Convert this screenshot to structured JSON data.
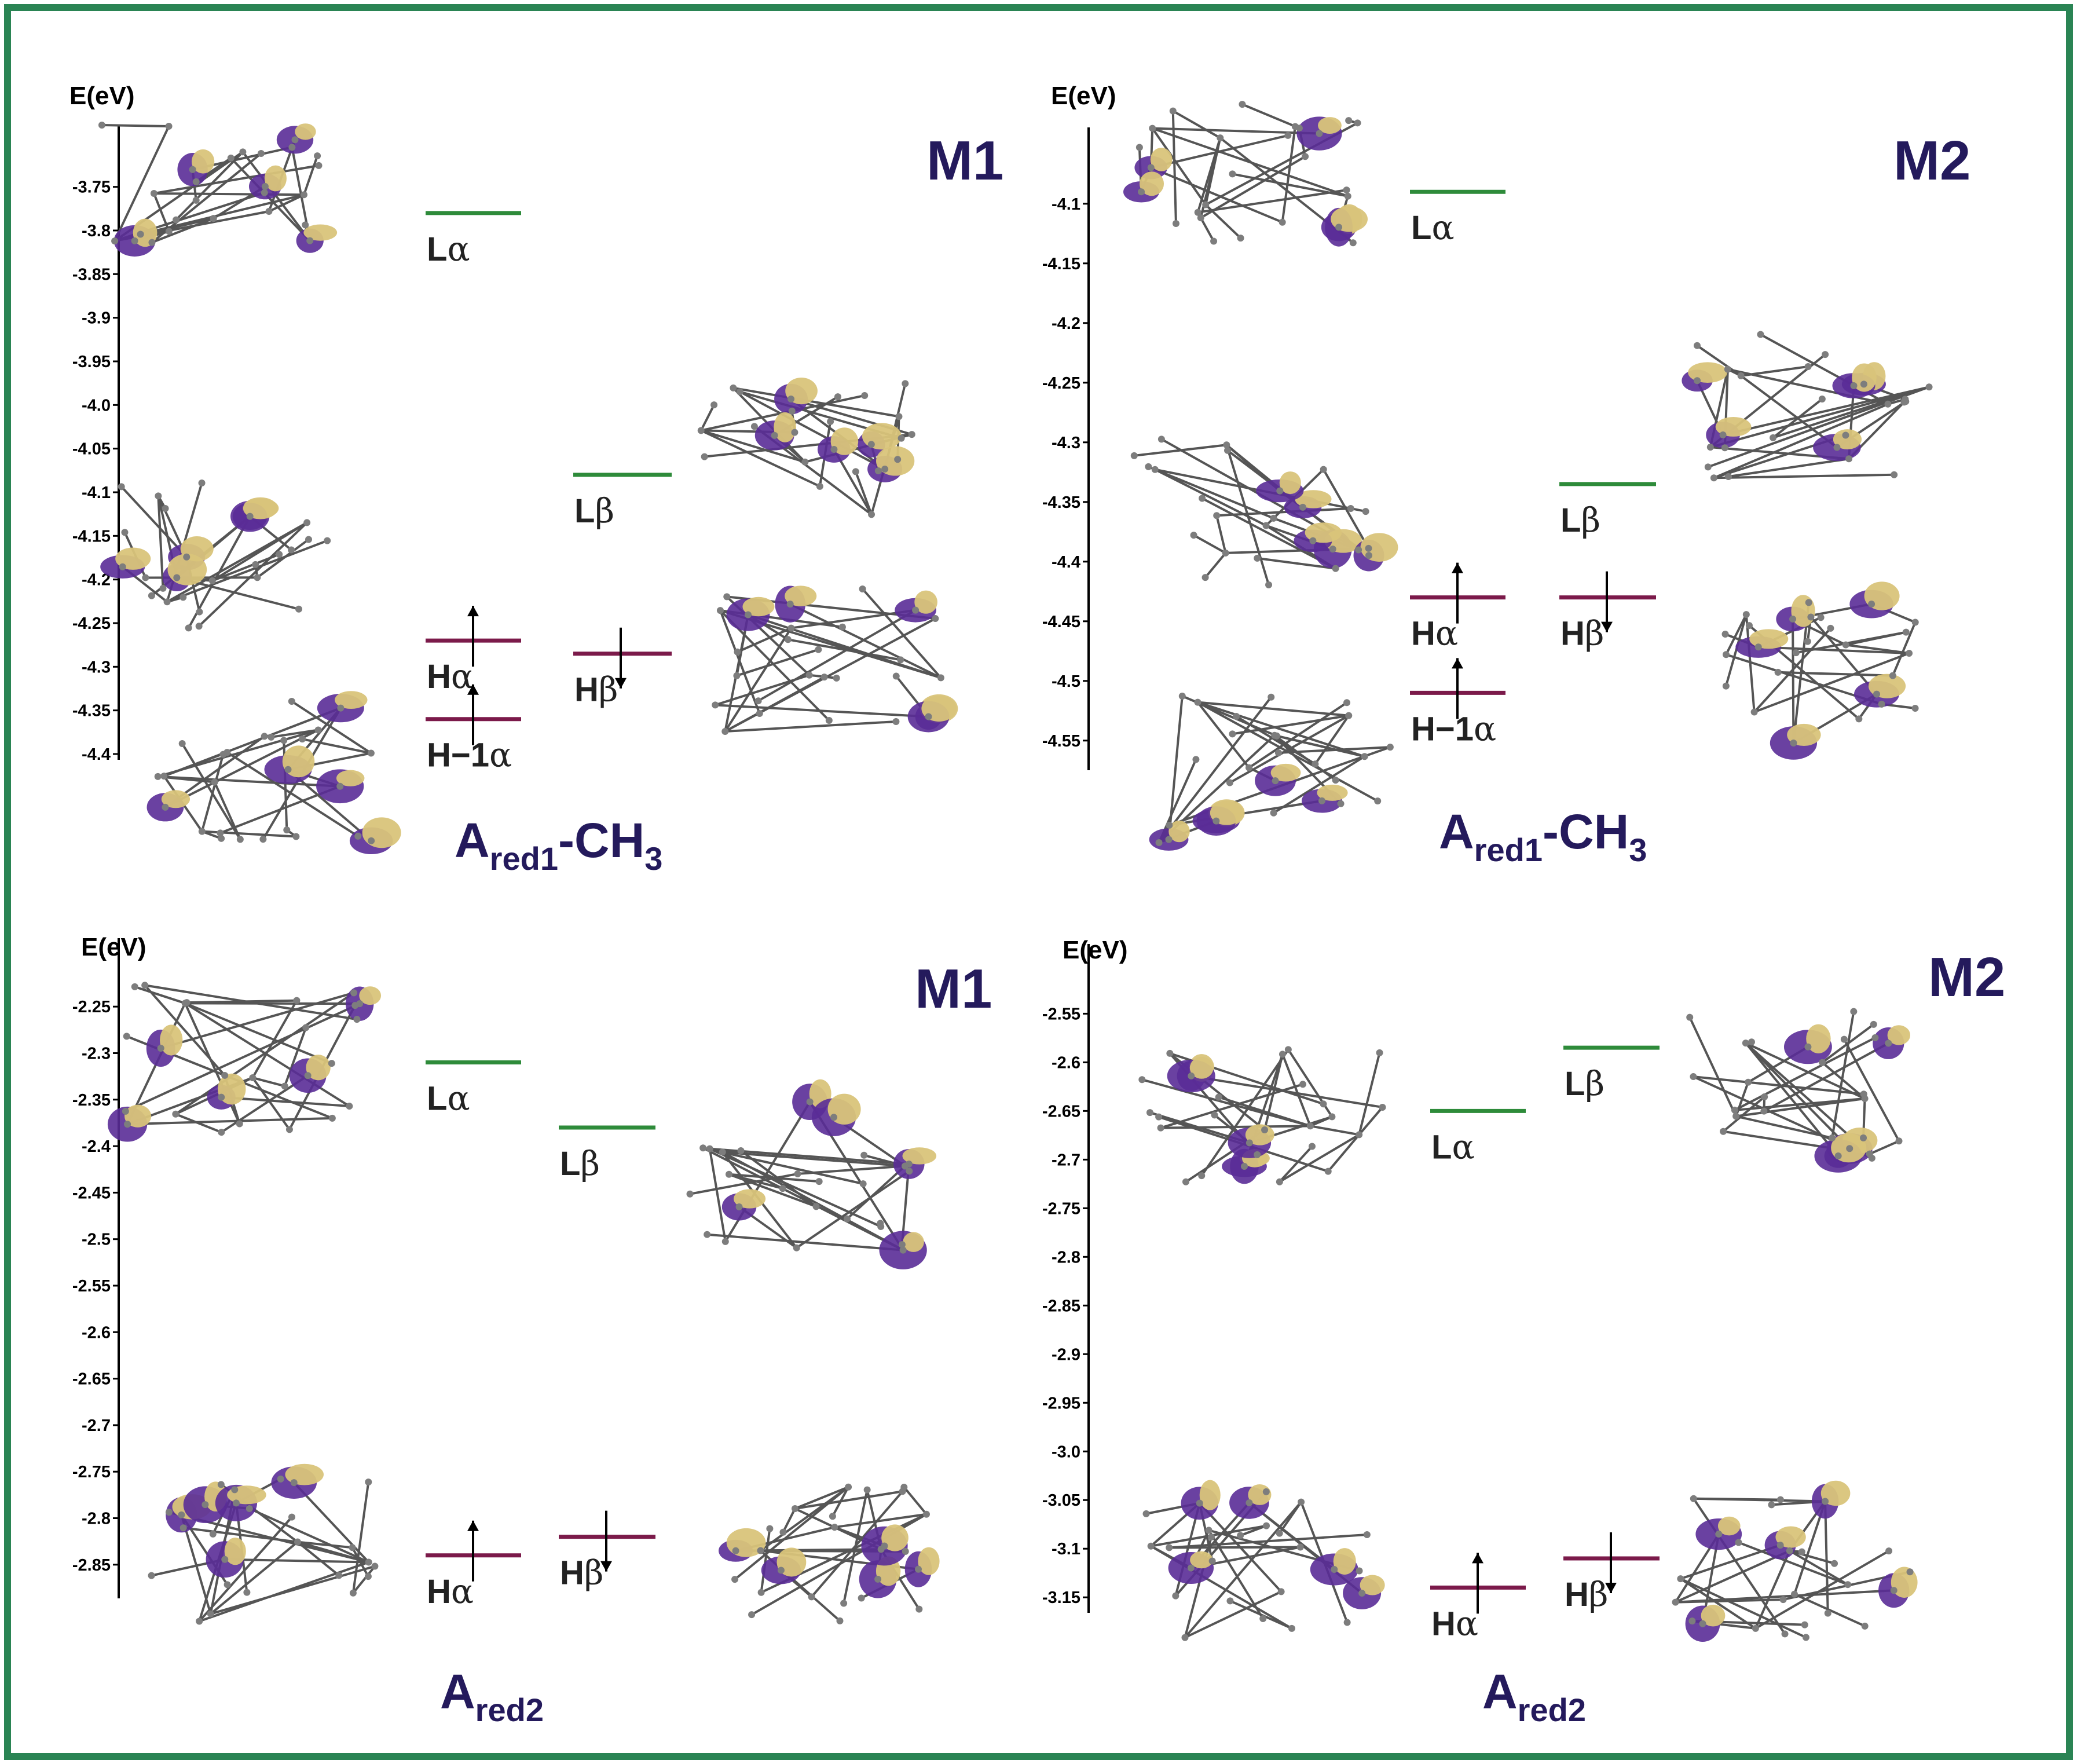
{
  "colors": {
    "frame": "#2a8454",
    "lumo": "#2e8b3a",
    "homo": "#7b1a4a",
    "title": "#241a5c",
    "orbital_purple": "#5a2c97",
    "orbital_gold": "#d9c47a",
    "atom_gray": "#7d7d7d",
    "bond": "#555555"
  },
  "chart_data": [
    {
      "type": "energy_level_diagram",
      "panel": "top-left",
      "model": "M1",
      "state": {
        "main": "A",
        "sub": "red1",
        "suffix": "-CH",
        "sub2": "3"
      },
      "ylabel": "E(eV)",
      "ylim": [
        -4.4,
        -3.725
      ],
      "ticks": [
        "-3.75",
        "-3.8",
        "-3.85",
        "-3.9",
        "-3.95",
        "-4.0",
        "-4.05",
        "-4.1",
        "-4.15",
        "-4.2",
        "-4.25",
        "-4.3",
        "-4.35",
        "-4.4"
      ],
      "levels": [
        {
          "label": "L",
          "greek": "α",
          "energy": -3.78,
          "kind": "LUMO",
          "column": 1,
          "spin": "none"
        },
        {
          "label": "L",
          "greek": "β",
          "energy": -4.08,
          "kind": "LUMO",
          "column": 2,
          "spin": "none"
        },
        {
          "label": "H",
          "greek": "α",
          "energy": -4.27,
          "kind": "HOMO",
          "column": 1,
          "spin": "up"
        },
        {
          "label": "H",
          "greek": "β",
          "energy": -4.285,
          "kind": "HOMO",
          "column": 2,
          "spin": "down"
        },
        {
          "label": "H−1",
          "greek": "α",
          "energy": -4.36,
          "kind": "HOMO",
          "column": 1,
          "spin": "up"
        }
      ]
    },
    {
      "type": "energy_level_diagram",
      "panel": "top-right",
      "model": "M2",
      "state": {
        "main": "A",
        "sub": "red1",
        "suffix": "-CH",
        "sub2": "3"
      },
      "ylabel": "E(eV)",
      "ylim": [
        -4.57,
        -4.07
      ],
      "ticks": [
        "-4.1",
        "-4.15",
        "-4.2",
        "-4.25",
        "-4.3",
        "-4.35",
        "-4.4",
        "-4.45",
        "-4.5",
        "-4.55"
      ],
      "levels": [
        {
          "label": "L",
          "greek": "α",
          "energy": -4.09,
          "kind": "LUMO",
          "column": 1,
          "spin": "none"
        },
        {
          "label": "L",
          "greek": "β",
          "energy": -4.335,
          "kind": "LUMO",
          "column": 2,
          "spin": "none"
        },
        {
          "label": "H",
          "greek": "α",
          "energy": -4.43,
          "kind": "HOMO",
          "column": 1,
          "spin": "up"
        },
        {
          "label": "H",
          "greek": "β",
          "energy": -4.43,
          "kind": "HOMO",
          "column": 2,
          "spin": "down"
        },
        {
          "label": "H−1",
          "greek": "α",
          "energy": -4.51,
          "kind": "HOMO",
          "column": 1,
          "spin": "up"
        }
      ]
    },
    {
      "type": "energy_level_diagram",
      "panel": "bottom-left",
      "model": "M1",
      "state": {
        "main": "A",
        "sub": "red2",
        "suffix": "",
        "sub2": ""
      },
      "ylabel": "E(eV)",
      "ylim": [
        -2.88,
        -2.22
      ],
      "ticks": [
        "-2.25",
        "-2.3",
        "-2.35",
        "-2.4",
        "-2.45",
        "-2.5",
        "-2.55",
        "-2.6",
        "-2.65",
        "-2.7",
        "-2.75",
        "-2.8",
        "-2.85"
      ],
      "levels": [
        {
          "label": "L",
          "greek": "α",
          "energy": -2.31,
          "kind": "LUMO",
          "column": 1,
          "spin": "none"
        },
        {
          "label": "L",
          "greek": "β",
          "energy": -2.38,
          "kind": "LUMO",
          "column": 2,
          "spin": "none"
        },
        {
          "label": "H",
          "greek": "α",
          "energy": -2.84,
          "kind": "HOMO",
          "column": 1,
          "spin": "up"
        },
        {
          "label": "H",
          "greek": "β",
          "energy": -2.82,
          "kind": "HOMO",
          "column": 2,
          "spin": "down"
        }
      ]
    },
    {
      "type": "energy_level_diagram",
      "panel": "bottom-right",
      "model": "M2",
      "state": {
        "main": "A",
        "sub": "red2",
        "suffix": "",
        "sub2": ""
      },
      "ylabel": "E(eV)",
      "ylim": [
        -3.16,
        -2.52
      ],
      "ticks": [
        "-2.55",
        "-2.6",
        "-2.65",
        "-2.7",
        "-2.75",
        "-2.8",
        "-2.85",
        "-2.9",
        "-2.95",
        "-3.0",
        "-3.05",
        "-3.1",
        "-3.15"
      ],
      "levels": [
        {
          "label": "L",
          "greek": "α",
          "energy": -2.65,
          "kind": "LUMO",
          "column": 1,
          "spin": "none"
        },
        {
          "label": "L",
          "greek": "β",
          "energy": -2.585,
          "kind": "LUMO",
          "column": 2,
          "spin": "none"
        },
        {
          "label": "H",
          "greek": "α",
          "energy": -3.14,
          "kind": "HOMO",
          "column": 1,
          "spin": "up"
        },
        {
          "label": "H",
          "greek": "β",
          "energy": -3.11,
          "kind": "HOMO",
          "column": 2,
          "spin": "down"
        }
      ]
    }
  ]
}
